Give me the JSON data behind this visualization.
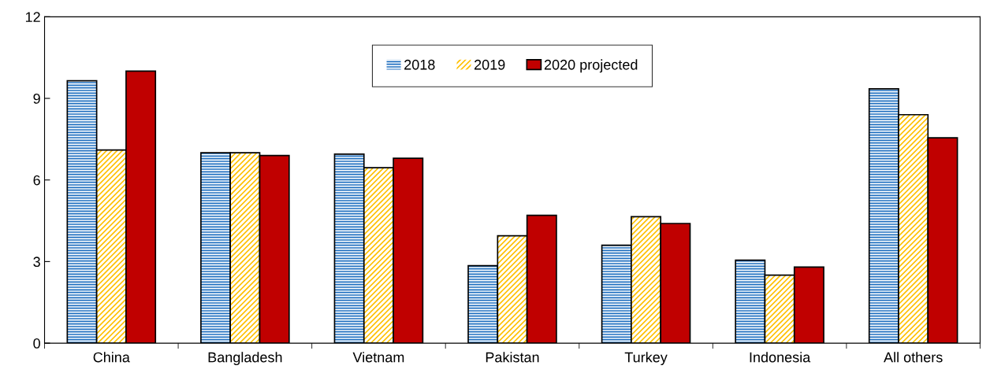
{
  "chart_data": {
    "type": "bar",
    "categories": [
      "China",
      "Bangladesh",
      "Vietnam",
      "Pakistan",
      "Turkey",
      "Indonesia",
      "All others"
    ],
    "series": [
      {
        "name": "2018",
        "color": "#1f6fc0",
        "values": [
          9.65,
          7.0,
          6.95,
          2.85,
          3.6,
          3.05,
          9.35
        ]
      },
      {
        "name": "2019",
        "color": "#ffc000",
        "values": [
          7.1,
          7.0,
          6.45,
          3.95,
          4.65,
          2.5,
          8.4
        ]
      },
      {
        "name": "2020 projected",
        "color": "#c00000",
        "values": [
          10.0,
          6.9,
          6.8,
          4.7,
          4.4,
          2.8,
          7.55
        ]
      }
    ],
    "ylim": [
      0,
      12
    ],
    "yticks": [
      0,
      3,
      6,
      9,
      12
    ],
    "grid": false,
    "legend": "top"
  }
}
